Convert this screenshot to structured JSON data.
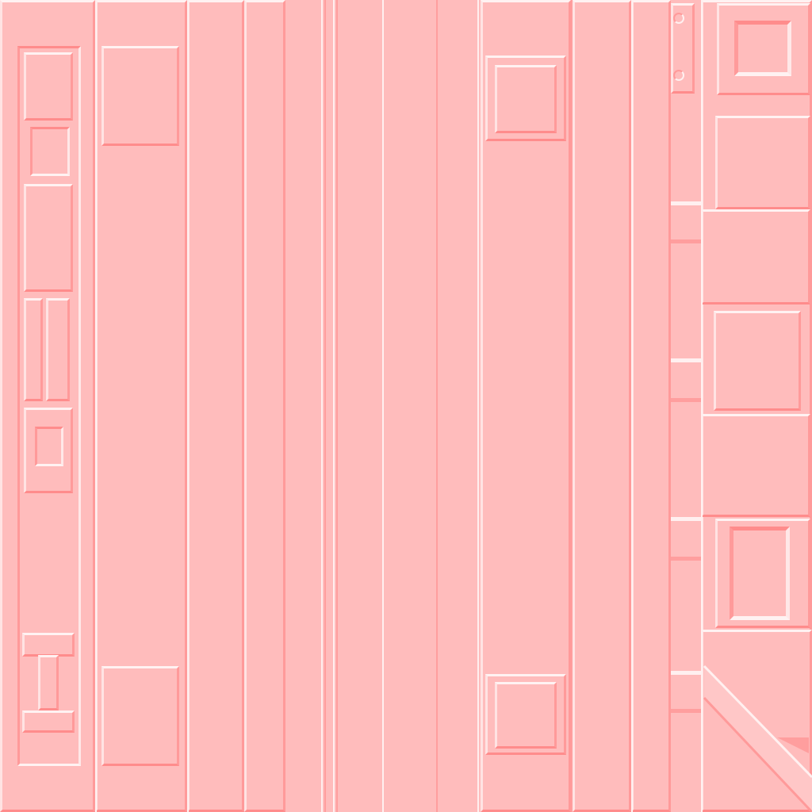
{
  "texture": {
    "kind": "sci-fi panel normal-map texture",
    "base_color": "#ffbcbc",
    "highlight_color": "#fff0f0",
    "shadow_color": "#ff8c8c",
    "icons": []
  }
}
